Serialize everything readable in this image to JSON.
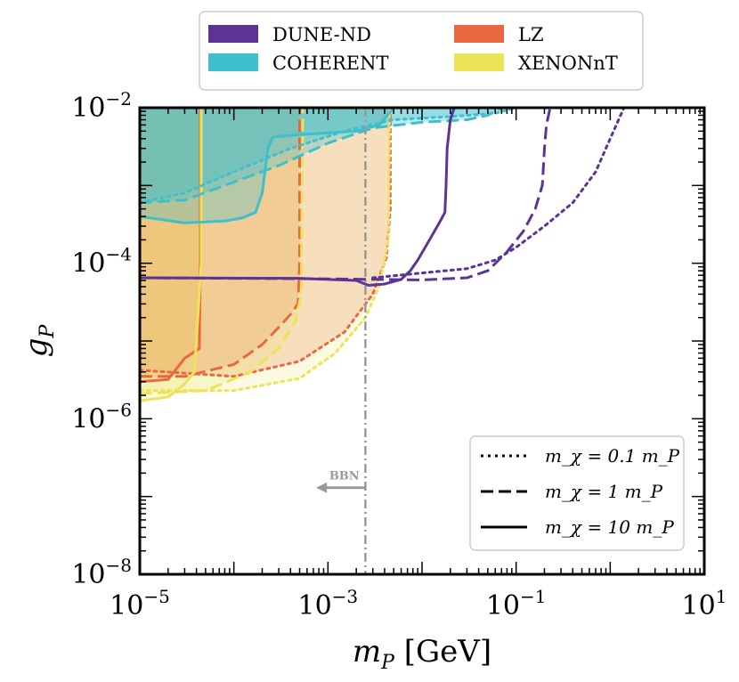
{
  "chart_data": {
    "type": "area",
    "title": "",
    "xlabel": "m_P [GeV]",
    "ylabel": "g_P",
    "xscale": "log",
    "yscale": "log",
    "xlim": [
      1e-05,
      10
    ],
    "ylim": [
      1e-08,
      0.01
    ],
    "x_ticks": [
      {
        "value": 1e-05,
        "base": "10",
        "exp": "−5"
      },
      {
        "value": 0.001,
        "base": "10",
        "exp": "−3"
      },
      {
        "value": 0.1,
        "base": "10",
        "exp": "−1"
      },
      {
        "value": 10,
        "base": "10",
        "exp": "1"
      }
    ],
    "y_ticks": [
      {
        "value": 1e-08,
        "base": "10",
        "exp": "−8"
      },
      {
        "value": 1e-06,
        "base": "10",
        "exp": "−6"
      },
      {
        "value": 0.0001,
        "base": "10",
        "exp": "−4"
      },
      {
        "value": 0.01,
        "base": "10",
        "exp": "−2"
      }
    ],
    "legend_experiments": [
      {
        "label": "DUNE-ND",
        "color": "#5c3494"
      },
      {
        "label": "COHERENT",
        "color": "#3fbfcc"
      },
      {
        "label": "LZ",
        "color": "#e8693f"
      },
      {
        "label": "XENONnT",
        "color": "#ebe458"
      }
    ],
    "legend_styles": [
      {
        "label": "m_χ = 0.1 m_P",
        "dash": "dotted"
      },
      {
        "label": "m_χ = 1 m_P",
        "dash": "dashed"
      },
      {
        "label": "m_χ = 10 m_P",
        "dash": "solid"
      }
    ],
    "bbn": {
      "label": "BBN",
      "x": 0.0025,
      "arrow_y": 1.3e-07,
      "arrow_to_x": 0.00075
    },
    "series": [
      {
        "experiment": "LZ",
        "style": "dotted",
        "fill": true,
        "points": [
          [
            1e-05,
            4.2e-06
          ],
          [
            2e-05,
            4e-06
          ],
          [
            0.0001,
            3.5e-06
          ],
          [
            0.0005,
            5.5e-06
          ],
          [
            0.0015,
            1.3e-05
          ],
          [
            0.003,
            4e-05
          ],
          [
            0.0042,
            0.00012
          ],
          [
            0.0046,
            0.0005
          ],
          [
            0.0046,
            0.01
          ]
        ]
      },
      {
        "experiment": "LZ",
        "style": "dashed",
        "fill": true,
        "points": [
          [
            1e-05,
            3.5e-06
          ],
          [
            3e-05,
            3.5e-06
          ],
          [
            0.0001,
            5e-06
          ],
          [
            0.0002,
            9e-06
          ],
          [
            0.0003,
            1.5e-05
          ],
          [
            0.0004,
            2.2e-05
          ],
          [
            0.00048,
            3e-05
          ],
          [
            0.0005,
            0.0001
          ],
          [
            0.0005,
            0.01
          ]
        ]
      },
      {
        "experiment": "LZ",
        "style": "solid",
        "fill": true,
        "points": [
          [
            1e-05,
            3e-06
          ],
          [
            2e-05,
            3.2e-06
          ],
          [
            3e-05,
            6e-06
          ],
          [
            4.3e-05,
            8e-06
          ],
          [
            4.4e-05,
            0.0001
          ],
          [
            4.4e-05,
            0.01
          ]
        ]
      },
      {
        "experiment": "XENONnT",
        "style": "dotted",
        "fill": true,
        "points": [
          [
            1e-05,
            2.3e-06
          ],
          [
            0.0001,
            2.3e-06
          ],
          [
            0.0005,
            3.3e-06
          ],
          [
            0.0012,
            7e-06
          ],
          [
            0.0025,
            2e-05
          ],
          [
            0.0035,
            5e-05
          ],
          [
            0.0044,
            0.0002
          ],
          [
            0.0045,
            0.01
          ]
        ]
      },
      {
        "experiment": "XENONnT",
        "style": "dashed",
        "fill": true,
        "points": [
          [
            1e-05,
            2.1e-06
          ],
          [
            5e-05,
            2.3e-06
          ],
          [
            0.00015,
            4e-06
          ],
          [
            0.0003,
            8e-06
          ],
          [
            0.00045,
            1.8e-05
          ],
          [
            0.00052,
            4e-05
          ],
          [
            0.00054,
            0.01
          ]
        ]
      },
      {
        "experiment": "XENONnT",
        "style": "solid",
        "fill": true,
        "points": [
          [
            1e-05,
            1.7e-06
          ],
          [
            2e-05,
            1.9e-06
          ],
          [
            3e-05,
            2.8e-06
          ],
          [
            3.8e-05,
            4e-06
          ],
          [
            4.5e-05,
            0.0001
          ],
          [
            4.5e-05,
            0.01
          ]
        ]
      },
      {
        "experiment": "COHERENT",
        "style": "dotted",
        "fill": true,
        "points": [
          [
            1e-05,
            0.0006
          ],
          [
            3e-05,
            0.0008
          ],
          [
            0.0001,
            0.0015
          ],
          [
            0.0004,
            0.003
          ],
          [
            0.0015,
            0.005
          ],
          [
            0.005,
            0.007
          ],
          [
            0.02,
            0.0077
          ],
          [
            0.06,
            0.0085
          ],
          [
            0.1,
            0.01
          ]
        ]
      },
      {
        "experiment": "COHERENT",
        "style": "dashed",
        "fill": true,
        "points": [
          [
            1e-05,
            0.0006
          ],
          [
            3e-05,
            0.00065
          ],
          [
            8e-05,
            0.001
          ],
          [
            0.0003,
            0.0018
          ],
          [
            0.001,
            0.0035
          ],
          [
            0.003,
            0.0055
          ],
          [
            0.01,
            0.0065
          ],
          [
            0.03,
            0.007
          ],
          [
            0.05,
            0.008
          ],
          [
            0.07,
            0.01
          ]
        ]
      },
      {
        "experiment": "COHERENT",
        "style": "solid",
        "fill": true,
        "points": [
          [
            1e-05,
            0.0004
          ],
          [
            3e-05,
            0.00033
          ],
          [
            8e-05,
            0.00035
          ],
          [
            0.00012,
            0.00038
          ],
          [
            0.00017,
            0.00045
          ],
          [
            0.0002,
            0.0008
          ],
          [
            0.00023,
            0.003
          ],
          [
            0.00026,
            0.0042
          ],
          [
            0.0005,
            0.0045
          ],
          [
            0.002,
            0.005
          ],
          [
            0.0035,
            0.006
          ],
          [
            0.005,
            0.01
          ]
        ]
      },
      {
        "experiment": "DUNE-ND",
        "style": "solid",
        "fill": false,
        "points": [
          [
            1e-05,
            6.5e-05
          ],
          [
            0.0005,
            6.4e-05
          ],
          [
            0.002,
            6e-05
          ],
          [
            0.0027,
            5.2e-05
          ],
          [
            0.004,
            5.4e-05
          ],
          [
            0.006,
            6.2e-05
          ],
          [
            0.0075,
            8e-05
          ],
          [
            0.009,
            0.00011
          ],
          [
            0.012,
            0.0002
          ],
          [
            0.015,
            0.00032
          ],
          [
            0.0175,
            0.00045
          ],
          [
            0.018,
            0.001
          ],
          [
            0.0185,
            0.003
          ],
          [
            0.02,
            0.007
          ],
          [
            0.022,
            0.01
          ]
        ]
      },
      {
        "experiment": "DUNE-ND",
        "style": "dashed",
        "fill": false,
        "points": [
          [
            1e-05,
            6.5e-05
          ],
          [
            0.001,
            6.3e-05
          ],
          [
            0.003,
            6.2e-05
          ],
          [
            0.01,
            6.1e-05
          ],
          [
            0.03,
            6.5e-05
          ],
          [
            0.05,
            8e-05
          ],
          [
            0.08,
            0.00014
          ],
          [
            0.12,
            0.00026
          ],
          [
            0.16,
            0.0005
          ],
          [
            0.19,
            0.001
          ],
          [
            0.2,
            0.003
          ],
          [
            0.21,
            0.006
          ],
          [
            0.23,
            0.01
          ]
        ]
      },
      {
        "experiment": "DUNE-ND",
        "style": "dotted",
        "fill": false,
        "points": [
          [
            0.003,
            6.5e-05
          ],
          [
            0.01,
            7.5e-05
          ],
          [
            0.03,
            8.5e-05
          ],
          [
            0.06,
            0.00011
          ],
          [
            0.1,
            0.00016
          ],
          [
            0.2,
            0.0003
          ],
          [
            0.4,
            0.0006
          ],
          [
            0.7,
            0.0015
          ],
          [
            1.0,
            0.004
          ],
          [
            1.4,
            0.01
          ]
        ]
      }
    ]
  }
}
